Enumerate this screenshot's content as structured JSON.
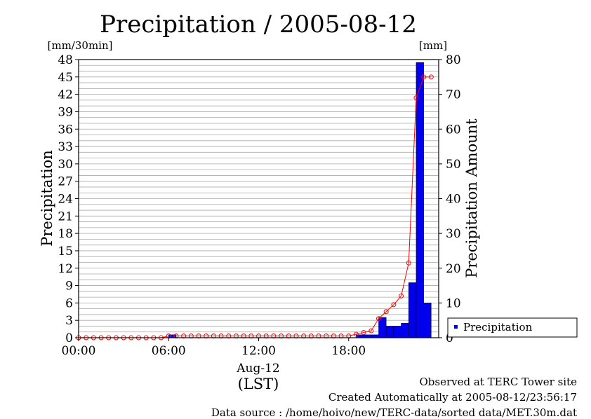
{
  "chart_data": {
    "type": "bar",
    "title": "Precipitation / 2005-08-12",
    "left_unit": "[mm/30min]",
    "right_unit": "[mm]",
    "ylabel": "Precipitation",
    "y2label": "Precipitation Amount",
    "x_tick_labels": [
      "00:00",
      "06:00",
      "12:00",
      "18:00"
    ],
    "x_date_label": "Aug-12",
    "x_tz_label": "(LST)",
    "ylim": [
      0,
      48
    ],
    "y_ticks": [
      0,
      3,
      6,
      9,
      12,
      15,
      18,
      21,
      24,
      27,
      30,
      33,
      36,
      39,
      42,
      45,
      48
    ],
    "y2lim": [
      0,
      80
    ],
    "y2_ticks": [
      0,
      10,
      20,
      30,
      40,
      50,
      60,
      70,
      80
    ],
    "grid": true,
    "legend_position": "bottom-right, outside plot",
    "x_times": [
      "00:00",
      "00:30",
      "01:00",
      "01:30",
      "02:00",
      "02:30",
      "03:00",
      "03:30",
      "04:00",
      "04:30",
      "05:00",
      "05:30",
      "06:00",
      "06:30",
      "07:00",
      "07:30",
      "08:00",
      "08:30",
      "09:00",
      "09:30",
      "10:00",
      "10:30",
      "11:00",
      "11:30",
      "12:00",
      "12:30",
      "13:00",
      "13:30",
      "14:00",
      "14:30",
      "15:00",
      "15:30",
      "16:00",
      "16:30",
      "17:00",
      "17:30",
      "18:00",
      "18:30",
      "19:00",
      "19:30",
      "20:00",
      "20:30",
      "21:00",
      "21:30",
      "22:00",
      "22:30",
      "23:00",
      "23:30"
    ],
    "series": [
      {
        "name": "Precipitation",
        "kind": "bar",
        "axis": "left",
        "color": "#0000ee",
        "values": [
          0,
          0,
          0,
          0,
          0,
          0,
          0,
          0,
          0,
          0,
          0,
          0,
          0.5,
          0,
          0,
          0,
          0,
          0,
          0,
          0,
          0,
          0,
          0,
          0,
          0,
          0,
          0,
          0,
          0,
          0,
          0,
          0,
          0,
          0,
          0,
          0,
          0,
          0.5,
          0.5,
          0.5,
          3.5,
          2,
          2,
          2.5,
          9.5,
          47.5,
          6,
          0
        ]
      },
      {
        "kind": "line",
        "axis": "right",
        "color": "#ff0000",
        "values": [
          0,
          0,
          0,
          0,
          0,
          0,
          0,
          0,
          0,
          0,
          0,
          0,
          0.5,
          0.5,
          0.5,
          0.5,
          0.5,
          0.5,
          0.5,
          0.5,
          0.5,
          0.5,
          0.5,
          0.5,
          0.5,
          0.5,
          0.5,
          0.5,
          0.5,
          0.5,
          0.5,
          0.5,
          0.5,
          0.5,
          0.5,
          0.5,
          0.5,
          1,
          1.5,
          2,
          5.5,
          7.5,
          9.5,
          12,
          21.5,
          69,
          75,
          75
        ]
      }
    ]
  },
  "footer": {
    "line1": "Observed at TERC Tower site",
    "line2": "Created Automatically at 2005-08-12/23:56:17",
    "line3": "Data source : /home/hoivo/new/TERC-data/sorted  data/MET.30m.dat"
  }
}
